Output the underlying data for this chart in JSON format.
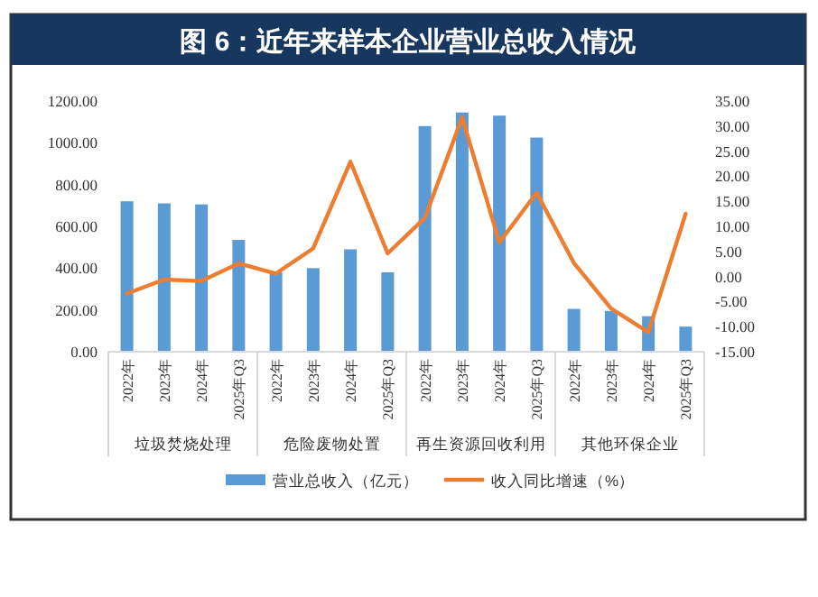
{
  "chart_data": {
    "type": "bar",
    "title": "图 6：近年来样本企业营业总收入情况",
    "categories": [
      "2022年",
      "2023年",
      "2024年",
      "2025年Q3",
      "2022年",
      "2023年",
      "2024年",
      "2025年Q3",
      "2022年",
      "2023年",
      "2024年",
      "2025年Q3",
      "2022年",
      "2023年",
      "2024年",
      "2025年Q3"
    ],
    "annotations": [
      "垃圾焚烧处理",
      "危险废物处置",
      "再生资源回收利用",
      "其他环保企业"
    ],
    "series": [
      {
        "name": "营业总收入（亿元）",
        "color": "#5b9bd5",
        "values": [
          720,
          710,
          705,
          535,
          380,
          400,
          490,
          380,
          1080,
          1145,
          1130,
          1025,
          205,
          195,
          170,
          120
        ]
      },
      {
        "name": "收入同比增速（%）",
        "type": "line",
        "axis": "y2",
        "color": "#ed7d31",
        "values": [
          -3.4,
          -0.6,
          -0.9,
          2.6,
          0.6,
          5.6,
          22.9,
          4.6,
          11.7,
          31.7,
          6.8,
          16.7,
          2.7,
          -6.4,
          -11.1,
          12.5
        ]
      }
    ],
    "ylim": [
      0,
      1200
    ],
    "yticks": [
      {
        "value": 0,
        "label": "0.00"
      },
      {
        "value": 200,
        "label": "200.00"
      },
      {
        "value": 400,
        "label": "400.00"
      },
      {
        "value": 600,
        "label": "600.00"
      },
      {
        "value": 800,
        "label": "800.00"
      },
      {
        "value": 1000,
        "label": "1000.00"
      },
      {
        "value": 1200,
        "label": "1200.00"
      }
    ],
    "y2lim": [
      -15,
      35
    ],
    "y2ticks": [
      {
        "value": -15,
        "label": "-15.00"
      },
      {
        "value": -10,
        "label": "-10.00"
      },
      {
        "value": -5,
        "label": "-5.00"
      },
      {
        "value": 0,
        "label": "0.00"
      },
      {
        "value": 5,
        "label": "5.00"
      },
      {
        "value": 10,
        "label": "10.00"
      },
      {
        "value": 15,
        "label": "15.00"
      },
      {
        "value": 20,
        "label": "20.00"
      },
      {
        "value": 25,
        "label": "25.00"
      },
      {
        "value": 30,
        "label": "30.00"
      },
      {
        "value": 35,
        "label": "35.00"
      }
    ],
    "grid": false,
    "legend": "bottom",
    "marker": "none",
    "line_style": "solid"
  }
}
